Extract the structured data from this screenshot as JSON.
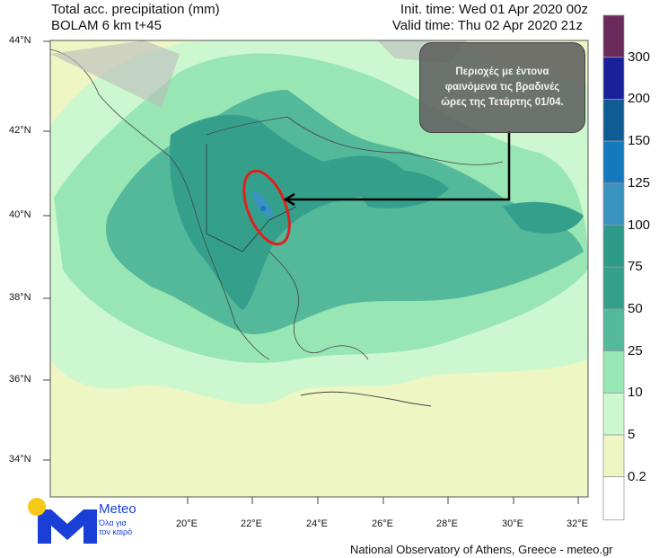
{
  "header": {
    "title_line1": "Total acc. precipitation (mm)",
    "title_line2": "BOLAM 6 km t+45",
    "init_time": "Init. time: Wed 01 Apr 2020 00z",
    "valid_time": "Valid time: Thu 02 Apr 2020 21z"
  },
  "annotation": {
    "lines": [
      "Περιοχές με έντονα",
      "φαινόμενα  τις βραδινές",
      "ώρες της Τετάρτης 01/04."
    ],
    "highlight_color": "#e0201c"
  },
  "axes": {
    "lat_ticks": [
      "44°N",
      "42°N",
      "40°N",
      "38°N",
      "36°N",
      "34°N"
    ],
    "lon_ticks": [
      "20°E",
      "22°E",
      "24°E",
      "26°E",
      "28°E",
      "30°E",
      "32°E"
    ]
  },
  "colorbar": {
    "labels": [
      "300",
      "200",
      "150",
      "125",
      "100",
      "75",
      "50",
      "25",
      "10",
      "5",
      "0.2"
    ],
    "colors": [
      "#6b2a5c",
      "#1a1f9a",
      "#0f5c94",
      "#1479bd",
      "#3b93c0",
      "#2e9a8a",
      "#34a08c",
      "#54b89a",
      "#98e6b4",
      "#cdf8cf",
      "#eef6c4",
      "#ffffff"
    ]
  },
  "logo": {
    "name": "Meteo",
    "tagline_line1": "Όλα για",
    "tagline_line2": "τον καιρό"
  },
  "footer": {
    "credit": "National Observatory of Athens, Greece - meteo.gr"
  }
}
